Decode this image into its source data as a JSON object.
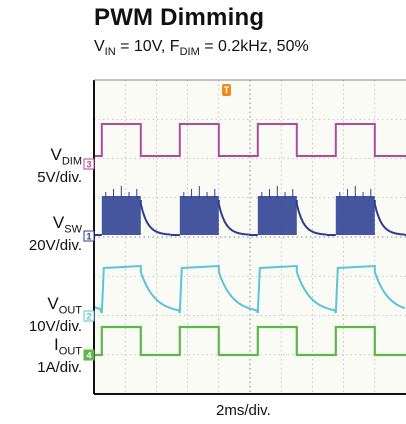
{
  "chart_data": {
    "type": "line",
    "title": "PWM Dimming",
    "subtitle": {
      "vin_symbol": "V",
      "vin_sub": "IN",
      "vin_text": " = 10V, ",
      "fdim_symbol": "F",
      "fdim_sub": "DIM",
      "fdim_text": " = 0.2kHz, 50%"
    },
    "xlabel": "2ms/div.",
    "trigger_marker": "T",
    "grid": true,
    "divisions": {
      "x": 10,
      "y": 8
    },
    "channels": [
      {
        "name_symbol": "V",
        "name_sub": "DIM",
        "scale": "5V/div.",
        "number": "3",
        "color": "#b04a9e"
      },
      {
        "name_symbol": "V",
        "name_sub": "SW",
        "scale": "20V/div.",
        "number": "1",
        "color": "#2b3e92"
      },
      {
        "name_symbol": "V",
        "name_sub": "OUT",
        "scale": "10V/div.",
        "number": "2",
        "color": "#5bc4d6"
      },
      {
        "name_symbol": "I",
        "name_sub": "OUT",
        "scale": "1A/div.",
        "number": "4",
        "color": "#5cb848"
      }
    ],
    "pwm": {
      "period_div": 2.5,
      "duty": 0.5,
      "first_rise_div": 0.25
    }
  }
}
